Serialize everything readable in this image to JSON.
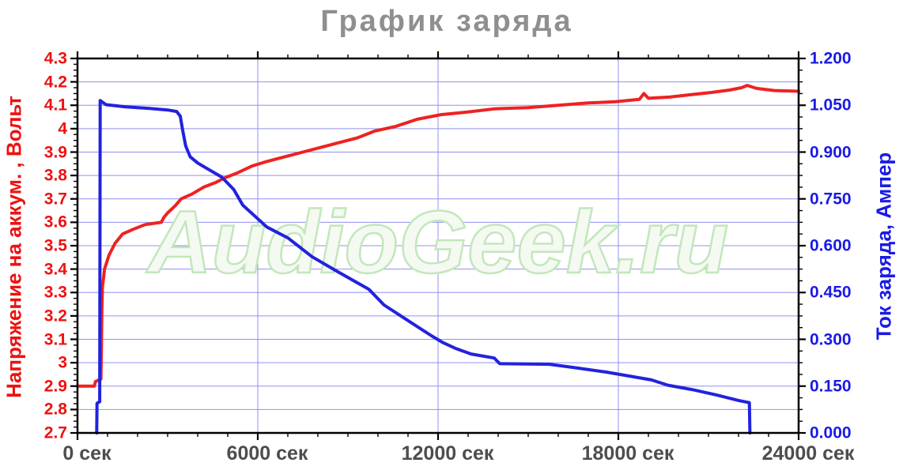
{
  "title": "График заряда",
  "watermark": "AudioGeek.ru",
  "colors": {
    "grid": "#9090f2",
    "axis": "#000000",
    "title": "#8f8f8f",
    "x_labels": "#4d4d4d",
    "voltage_line": "#ee2222",
    "current_line": "#2222dd",
    "left_axis_text": "#ee1111",
    "right_axis_text": "#1a1ae6",
    "watermark_fill": "#f4faf2",
    "watermark_stroke": "#c3e7bb"
  },
  "chart_data": {
    "type": "line",
    "title": "График заряда",
    "legend": "none",
    "grid": true,
    "x_axis": {
      "unit": "сек",
      "min": 0,
      "max": 24000,
      "major_step": 6000,
      "minor_step": 1000,
      "tick_labels": [
        "0 сек",
        "6000 сек",
        "12000 сек",
        "18000 сек",
        "24000 сек"
      ]
    },
    "y_left": {
      "label": "Напряжение на аккум. , Вольт",
      "min": 2.7,
      "max": 4.3,
      "major_step": 0.1,
      "minor_per_major": 4,
      "tick_labels": [
        "4.3",
        "4.2",
        "4.1",
        "4",
        "3.9",
        "3.8",
        "3.7",
        "3.6",
        "3.5",
        "3.4",
        "3.3",
        "3.2",
        "3.1",
        "3",
        "2.9",
        "2.8",
        "2.7"
      ]
    },
    "y_right": {
      "label": "Ток заряда, Ампер",
      "min": 0,
      "max": 1.2,
      "major_step": 0.15,
      "minor_per_major": 4,
      "tick_labels": [
        "1.200",
        "1.050",
        "0.900",
        "0.750",
        "0.600",
        "0.450",
        "0.300",
        "0.150",
        "0.000"
      ]
    },
    "series": [
      {
        "name": "Напряжение на аккум., Вольт",
        "axis": "left",
        "color": "#ee2222",
        "points": [
          [
            0,
            2.9
          ],
          [
            560,
            2.9
          ],
          [
            600,
            2.92
          ],
          [
            780,
            2.93
          ],
          [
            795,
            3.05
          ],
          [
            810,
            3.22
          ],
          [
            830,
            3.32
          ],
          [
            900,
            3.4
          ],
          [
            1050,
            3.46
          ],
          [
            1250,
            3.51
          ],
          [
            1500,
            3.55
          ],
          [
            1850,
            3.57
          ],
          [
            2250,
            3.59
          ],
          [
            2790,
            3.6
          ],
          [
            2870,
            3.62
          ],
          [
            3000,
            3.64
          ],
          [
            3250,
            3.67
          ],
          [
            3450,
            3.7
          ],
          [
            3800,
            3.72
          ],
          [
            4200,
            3.75
          ],
          [
            4600,
            3.77
          ],
          [
            4900,
            3.79
          ],
          [
            5300,
            3.81
          ],
          [
            5800,
            3.84
          ],
          [
            6300,
            3.86
          ],
          [
            6900,
            3.88
          ],
          [
            7500,
            3.9
          ],
          [
            8100,
            3.92
          ],
          [
            8700,
            3.94
          ],
          [
            9300,
            3.96
          ],
          [
            9900,
            3.99
          ],
          [
            10600,
            4.01
          ],
          [
            11300,
            4.04
          ],
          [
            12100,
            4.06
          ],
          [
            12900,
            4.07
          ],
          [
            13900,
            4.085
          ],
          [
            15000,
            4.09
          ],
          [
            16000,
            4.1
          ],
          [
            17000,
            4.11
          ],
          [
            17900,
            4.115
          ],
          [
            18700,
            4.125
          ],
          [
            18850,
            4.15
          ],
          [
            19000,
            4.13
          ],
          [
            19700,
            4.135
          ],
          [
            20400,
            4.145
          ],
          [
            21100,
            4.155
          ],
          [
            21700,
            4.165
          ],
          [
            22100,
            4.175
          ],
          [
            22290,
            4.185
          ],
          [
            22600,
            4.172
          ],
          [
            23200,
            4.163
          ],
          [
            24000,
            4.16
          ]
        ]
      },
      {
        "name": "Ток заряда, Ампер",
        "axis": "right",
        "color": "#2222dd",
        "points": [
          [
            640,
            0.0
          ],
          [
            650,
            0.095
          ],
          [
            740,
            0.1
          ],
          [
            755,
            1.065
          ],
          [
            950,
            1.052
          ],
          [
            1600,
            1.045
          ],
          [
            2400,
            1.04
          ],
          [
            3000,
            1.035
          ],
          [
            3300,
            1.03
          ],
          [
            3420,
            1.015
          ],
          [
            3500,
            0.97
          ],
          [
            3600,
            0.92
          ],
          [
            3750,
            0.885
          ],
          [
            4000,
            0.865
          ],
          [
            4350,
            0.845
          ],
          [
            4800,
            0.82
          ],
          [
            5200,
            0.78
          ],
          [
            5500,
            0.73
          ],
          [
            6300,
            0.66
          ],
          [
            7000,
            0.625
          ],
          [
            7800,
            0.565
          ],
          [
            8600,
            0.52
          ],
          [
            9700,
            0.46
          ],
          [
            10200,
            0.41
          ],
          [
            11000,
            0.36
          ],
          [
            11800,
            0.31
          ],
          [
            12150,
            0.29
          ],
          [
            12600,
            0.27
          ],
          [
            13100,
            0.253
          ],
          [
            13870,
            0.24
          ],
          [
            14050,
            0.222
          ],
          [
            15710,
            0.22
          ],
          [
            16500,
            0.21
          ],
          [
            17600,
            0.195
          ],
          [
            19100,
            0.17
          ],
          [
            19650,
            0.153
          ],
          [
            20450,
            0.139
          ],
          [
            21250,
            0.122
          ],
          [
            22000,
            0.104
          ],
          [
            22360,
            0.097
          ],
          [
            22380,
            0.0
          ]
        ]
      }
    ]
  }
}
